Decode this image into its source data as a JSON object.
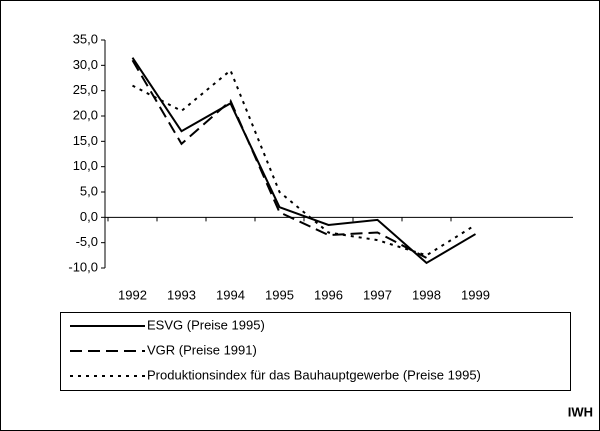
{
  "chart_data": {
    "type": "line",
    "categories": [
      "1992",
      "1993",
      "1994",
      "1995",
      "1996",
      "1997",
      "1998",
      "1999"
    ],
    "series": [
      {
        "name": "ESVG (Preise 1995)",
        "color": "#000000",
        "style": "solid",
        "values": [
          31.5,
          17,
          22.5,
          2,
          -1.5,
          -0.5,
          -9,
          -3.3
        ]
      },
      {
        "name": "VGR (Preise 1991)",
        "color": "#000000",
        "style": "dashed",
        "values": [
          31,
          14.5,
          23,
          1,
          -3.5,
          -3,
          -8,
          null
        ]
      },
      {
        "name": "Produktionsindex für das Bauhauptgewerbe (Preise 1995)",
        "color": "#000000",
        "style": "dotted",
        "values": [
          26,
          21,
          29,
          5,
          -3,
          -4.5,
          -7.5,
          -1.5
        ]
      }
    ],
    "ylim": [
      -10,
      35
    ],
    "yticks": [
      {
        "value": -10,
        "label": "-10,0"
      },
      {
        "value": -5,
        "label": "-5,0"
      },
      {
        "value": 0,
        "label": "0,0"
      },
      {
        "value": 5,
        "label": "5,0"
      },
      {
        "value": 10,
        "label": "10,0"
      },
      {
        "value": 15,
        "label": "15,0"
      },
      {
        "value": 20,
        "label": "20,0"
      },
      {
        "value": 25,
        "label": "25,0"
      },
      {
        "value": 30,
        "label": "30,0"
      },
      {
        "value": 35,
        "label": "35,0"
      }
    ],
    "grid": false,
    "source": "IWH"
  }
}
